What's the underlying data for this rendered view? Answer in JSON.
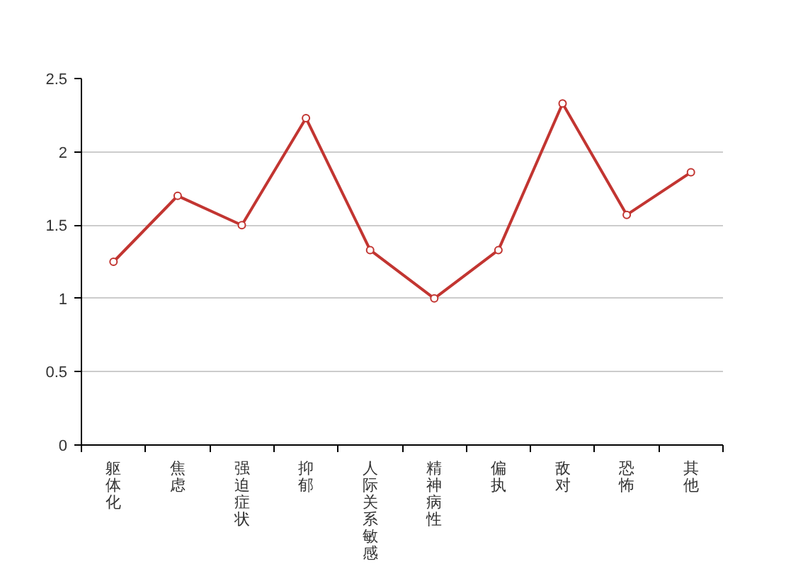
{
  "chart_data": {
    "type": "line",
    "categories": [
      "躯体化",
      "焦虑",
      "强迫症状",
      "抑郁",
      "人际关系敏感",
      "精神病性",
      "偏执",
      "敌对",
      "恐怖",
      "其他"
    ],
    "series": [
      {
        "color": "#c23531",
        "values": [
          1.25,
          1.7,
          1.5,
          2.23,
          1.33,
          1.0,
          1.33,
          2.33,
          1.57,
          1.86
        ]
      }
    ],
    "ylim": [
      0,
      2.5
    ],
    "yticks": [
      0,
      0.5,
      1,
      1.5,
      2,
      2.5
    ],
    "grid": "y",
    "marker": "circle"
  }
}
